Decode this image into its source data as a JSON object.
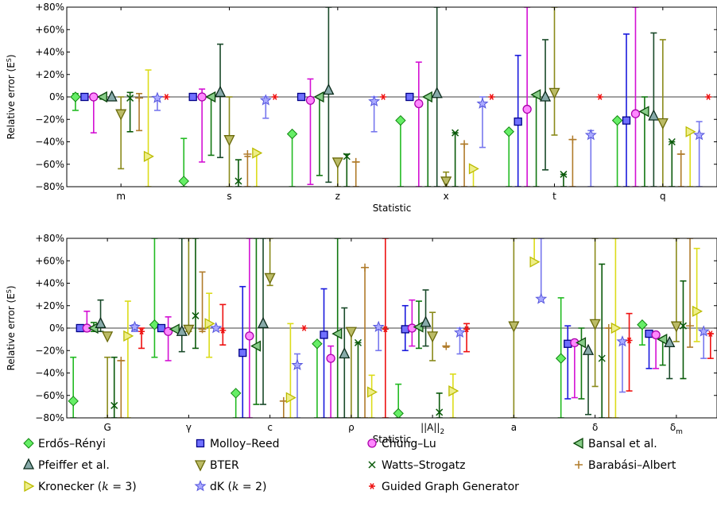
{
  "series_styles": [
    {
      "name": "Erdős–Rényi",
      "color": "#22bb22",
      "marker": "diamond"
    },
    {
      "name": "Molloy–Reed",
      "color": "#1a1add",
      "marker": "square"
    },
    {
      "name": "Chung–Lu",
      "color": "#d410d4",
      "marker": "circle"
    },
    {
      "name": "Bansal et al.",
      "color": "#117711",
      "marker": "triangle-left"
    },
    {
      "name": "Pfeiffer et al.",
      "color": "#1a4a2a",
      "marker": "triangle-up"
    },
    {
      "name": "BTER",
      "color": "#8a8a1a",
      "marker": "triangle-down"
    },
    {
      "name": "Watts–Strogatz",
      "color": "#0a5a0a",
      "marker": "x"
    },
    {
      "name": "Barabási–Albert",
      "color": "#b07b2a",
      "marker": "plus"
    },
    {
      "name": "Kronecker (k = 3)",
      "color": "#dcdc1a",
      "marker": "triangle-right"
    },
    {
      "name": "dK (k = 2)",
      "color": "#7777ee",
      "marker": "star"
    },
    {
      "name": "Guided Graph Generator",
      "color": "#ee1111",
      "marker": "asterisk"
    }
  ],
  "legend": [
    {
      "pre": "Erdős–Rényi",
      "math": "",
      "post": ""
    },
    {
      "pre": "Molloy–Reed",
      "math": "",
      "post": ""
    },
    {
      "pre": "Chung–Lu",
      "math": "",
      "post": ""
    },
    {
      "pre": "Bansal et al.",
      "math": "",
      "post": ""
    },
    {
      "pre": "Pfeiffer et al.",
      "math": "",
      "post": ""
    },
    {
      "pre": "BTER",
      "math": "",
      "post": ""
    },
    {
      "pre": "Watts–Strogatz",
      "math": "",
      "post": ""
    },
    {
      "pre": "Barabási–Albert",
      "math": "",
      "post": ""
    },
    {
      "pre": "Kronecker (",
      "math": "k",
      "post": " = 3)"
    },
    {
      "pre": "dK (",
      "math": "k",
      "post": " = 2)"
    },
    {
      "pre": "Guided Graph Generator",
      "math": "",
      "post": ""
    }
  ],
  "chart_data": [
    {
      "type": "errorbar",
      "xlabel": "Statistic",
      "ylabel": "Relative error (E^S)",
      "ylim": [
        -80,
        80
      ],
      "yticks": [
        "+80%",
        "+60%",
        "+40%",
        "+20%",
        "0%",
        "−20%",
        "−40%",
        "−60%",
        "−80%"
      ],
      "ytick_values": [
        80,
        60,
        40,
        20,
        0,
        -20,
        -40,
        -60,
        -80
      ],
      "categories": [
        {
          "label": "m",
          "sub": ""
        },
        {
          "label": "s",
          "sub": ""
        },
        {
          "label": "z",
          "sub": ""
        },
        {
          "label": "x",
          "sub": ""
        },
        {
          "label": "t",
          "sub": ""
        },
        {
          "label": "q",
          "sub": ""
        }
      ],
      "data": [
        [
          [
            0,
            -12,
            3
          ],
          [
            0,
            -2,
            2
          ],
          [
            0,
            -32,
            0
          ],
          [
            0,
            -2,
            0
          ],
          [
            0,
            -2,
            0
          ],
          [
            -15,
            -64,
            0
          ],
          [
            -1,
            -31,
            4
          ],
          [
            -1,
            -30,
            3
          ],
          [
            -53,
            -80,
            24
          ],
          [
            -1,
            -12,
            0
          ],
          [
            0,
            null,
            null
          ]
        ],
        [
          [
            -75,
            -80,
            -37
          ],
          [
            0,
            -2,
            0
          ],
          [
            0,
            -58,
            7
          ],
          [
            0,
            -52,
            0
          ],
          [
            4,
            -54,
            47
          ],
          [
            -38,
            -80,
            0
          ],
          [
            -75,
            -80,
            -56
          ],
          [
            -51,
            -80,
            -53
          ],
          [
            -50,
            -80,
            -50
          ],
          [
            -3,
            -19,
            0
          ],
          [
            0,
            null,
            null
          ]
        ],
        [
          [
            -33,
            -80,
            -33
          ],
          [
            0,
            -2,
            0
          ],
          [
            -3,
            -78,
            16
          ],
          [
            0,
            -70,
            0
          ],
          [
            6,
            -76,
            80
          ],
          [
            -58,
            -80,
            -55
          ],
          [
            -53,
            -80,
            -51
          ],
          [
            -58,
            -80,
            -58
          ],
          [
            -80,
            null,
            null
          ],
          [
            -4,
            -31,
            0
          ],
          [
            0,
            null,
            null
          ]
        ],
        [
          [
            -21,
            -80,
            -21
          ],
          [
            0,
            -2,
            0
          ],
          [
            -6,
            -80,
            31
          ],
          [
            0,
            -80,
            0
          ],
          [
            3,
            -80,
            80
          ],
          [
            -75,
            -80,
            -67
          ],
          [
            -32,
            -80,
            -32
          ],
          [
            -42,
            -80,
            -42
          ],
          [
            -64,
            -80,
            -64
          ],
          [
            -6,
            -45,
            0
          ],
          [
            0,
            null,
            null
          ]
        ],
        [
          [
            -31,
            -80,
            -31
          ],
          [
            -22,
            -80,
            37
          ],
          [
            -11,
            -80,
            80
          ],
          [
            2,
            -80,
            0
          ],
          [
            0,
            -65,
            51
          ],
          [
            4,
            -34,
            80
          ],
          [
            -69,
            -80,
            -69
          ],
          [
            -38,
            -80,
            -38
          ],
          [
            -80,
            null,
            null
          ],
          [
            -34,
            -80,
            -30
          ],
          [
            0,
            null,
            null
          ]
        ],
        [
          [
            -21,
            -80,
            -21
          ],
          [
            -21,
            -80,
            56
          ],
          [
            -15,
            -80,
            80
          ],
          [
            -13,
            -80,
            0
          ],
          [
            -17,
            -80,
            57
          ],
          [
            -23,
            -80,
            51
          ],
          [
            -40,
            -80,
            -40
          ],
          [
            -51,
            -80,
            -51
          ],
          [
            -31,
            -80,
            -31
          ],
          [
            -34,
            -80,
            -22
          ],
          [
            0,
            null,
            null
          ]
        ]
      ]
    },
    {
      "type": "errorbar",
      "xlabel": "Statistic",
      "ylabel": "Relative error (E^S)",
      "ylim": [
        -80,
        80
      ],
      "yticks": [
        "+80%",
        "+60%",
        "+40%",
        "+20%",
        "0%",
        "−20%",
        "−40%",
        "−60%",
        "−80%"
      ],
      "ytick_values": [
        80,
        60,
        40,
        20,
        0,
        -20,
        -40,
        -60,
        -80
      ],
      "categories": [
        {
          "label": "G",
          "sub": ""
        },
        {
          "label": "γ",
          "sub": ""
        },
        {
          "label": "c",
          "sub": ""
        },
        {
          "label": "ρ",
          "sub": ""
        },
        {
          "label": "||A||",
          "sub": "2"
        },
        {
          "label": "a",
          "sub": ""
        },
        {
          "label": "δ",
          "sub": ""
        },
        {
          "label": "δ",
          "sub": "m"
        }
      ],
      "data": [
        [
          [
            -65,
            -80,
            -26
          ],
          [
            0,
            -3,
            3
          ],
          [
            0,
            -3,
            15
          ],
          [
            0,
            -3,
            5
          ],
          [
            4,
            -3,
            25
          ],
          [
            -7,
            -80,
            -26
          ],
          [
            -69,
            -80,
            -26
          ],
          [
            -29,
            -80,
            -29
          ],
          [
            -7,
            -80,
            24
          ],
          [
            1,
            -3,
            3
          ],
          [
            -3,
            -18,
            0
          ]
        ],
        [
          [
            3,
            -26,
            80
          ],
          [
            0,
            -3,
            0
          ],
          [
            -3,
            -29,
            10
          ],
          [
            -1,
            -2,
            0
          ],
          [
            -3,
            -21,
            80
          ],
          [
            -1,
            -3,
            80
          ],
          [
            11,
            -18,
            80
          ],
          [
            -1,
            -3,
            50
          ],
          [
            4,
            -26,
            31
          ],
          [
            0,
            0,
            0
          ],
          [
            -2,
            -15,
            21
          ]
        ],
        [
          [
            -58,
            -80,
            -58
          ],
          [
            -22,
            -80,
            37
          ],
          [
            -7,
            -80,
            80
          ],
          [
            -16,
            -68,
            80
          ],
          [
            4,
            -68,
            80
          ],
          [
            45,
            38,
            80
          ],
          [
            -80,
            null,
            null
          ],
          [
            -65,
            -80,
            -65
          ],
          [
            -62,
            -80,
            4
          ],
          [
            -33,
            -80,
            -23
          ],
          [
            0,
            null,
            null
          ]
        ],
        [
          [
            -14,
            -80,
            -14
          ],
          [
            -6,
            -80,
            35
          ],
          [
            -27,
            -80,
            -16
          ],
          [
            -5,
            -80,
            80
          ],
          [
            -23,
            -80,
            18
          ],
          [
            -3,
            -80,
            -3
          ],
          [
            -13,
            -80,
            -13
          ],
          [
            54,
            -80,
            54
          ],
          [
            -57,
            -80,
            -42
          ],
          [
            1,
            -20,
            1
          ],
          [
            -1,
            -80,
            80
          ]
        ],
        [
          [
            -76,
            -80,
            -50
          ],
          [
            -1,
            -20,
            20
          ],
          [
            0,
            -16,
            25
          ],
          [
            1,
            -18,
            24
          ],
          [
            5,
            -16,
            34
          ],
          [
            -7,
            -29,
            14
          ],
          [
            -75,
            -80,
            -58
          ],
          [
            -16,
            -17,
            -16
          ],
          [
            -56,
            -80,
            -41
          ],
          [
            -4,
            -23,
            0
          ],
          [
            -1,
            -21,
            4
          ]
        ],
        [
          [
            -80,
            null,
            null
          ],
          [
            -80,
            null,
            null
          ],
          [
            -80,
            null,
            null
          ],
          [
            -80,
            null,
            null
          ],
          [
            -80,
            null,
            null
          ],
          [
            2,
            -80,
            80
          ],
          [
            -80,
            null,
            null
          ],
          [
            -80,
            null,
            null
          ],
          [
            59,
            59,
            80
          ],
          [
            26,
            26,
            80
          ],
          [
            -80,
            null,
            null
          ]
        ],
        [
          [
            -27,
            -80,
            27
          ],
          [
            -14,
            -63,
            2
          ],
          [
            -13,
            -62,
            -13
          ],
          [
            -13,
            -63,
            0
          ],
          [
            -20,
            -77,
            -20
          ],
          [
            4,
            -52,
            80
          ],
          [
            -27,
            -80,
            57
          ],
          [
            0,
            -80,
            0
          ],
          [
            0,
            -80,
            80
          ],
          [
            -12,
            -57,
            -12
          ],
          [
            -11,
            -56,
            13
          ]
        ],
        [
          [
            3,
            -15,
            3
          ],
          [
            -5,
            -36,
            -5
          ],
          [
            -6,
            -36,
            -6
          ],
          [
            -10,
            -33,
            -10
          ],
          [
            -13,
            -45,
            -13
          ],
          [
            2,
            -12,
            80
          ],
          [
            2,
            -45,
            42
          ],
          [
            2,
            -17,
            80
          ],
          [
            15,
            -12,
            71
          ],
          [
            -3,
            -27,
            -3
          ],
          [
            -5,
            -27,
            -5
          ]
        ]
      ]
    }
  ]
}
